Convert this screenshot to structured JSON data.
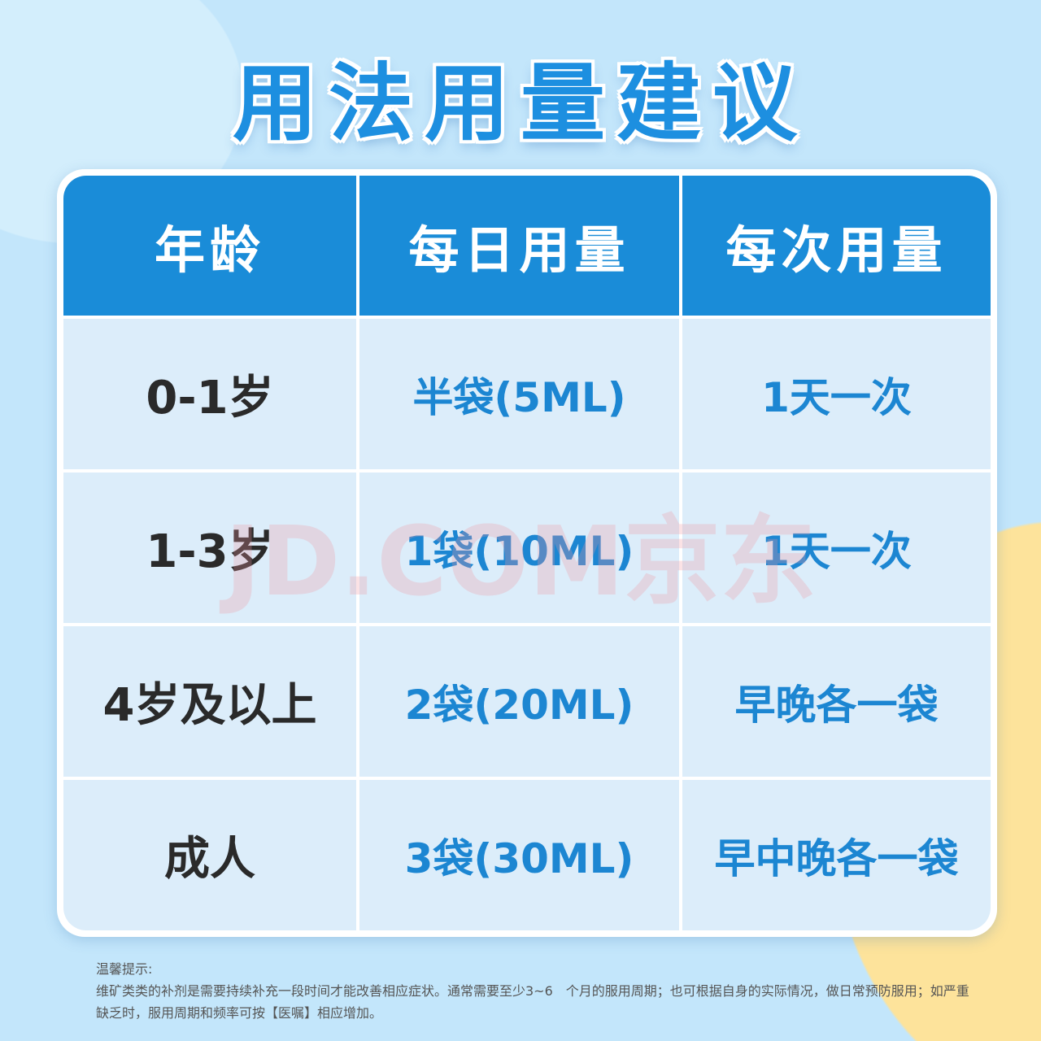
{
  "title": "用法用量建议",
  "table": {
    "headers": [
      "年龄",
      "每日用量",
      "每次用量"
    ],
    "rows": [
      [
        "0-1岁",
        "半袋(5ML)",
        "1天一次"
      ],
      [
        "1-3岁",
        "1袋(10ML)",
        "1天一次"
      ],
      [
        "4岁及以上",
        "2袋(20ML)",
        "早晚各一袋"
      ],
      [
        "成人",
        "3袋(30ML)",
        "早中晚各一袋"
      ]
    ]
  },
  "watermark": "JD.COM京东",
  "note": {
    "heading": "温馨提示:",
    "text": "维矿类类的补剂是需要持续补充一段时间才能改善相应症状。通常需要至少3~6　个月的服用周期；也可根据自身的实际情况，做日常预防服用；如严重缺乏时，服用周期和频率可按【医嘱】相应增加。"
  },
  "colors": {
    "accent": "#1a8cd8",
    "background": "#c3e6fb",
    "cell": "#dcedfa"
  }
}
